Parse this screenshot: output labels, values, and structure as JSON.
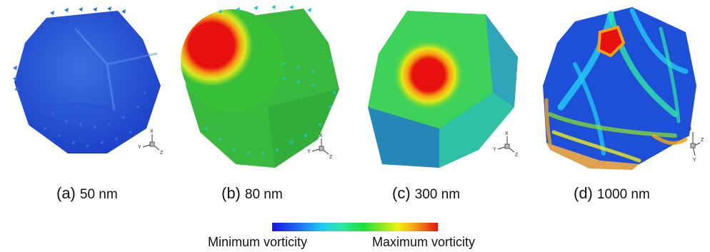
{
  "panels": [
    {
      "letter": "(a)",
      "size": "50 nm"
    },
    {
      "letter": "(b)",
      "size": "80 nm"
    },
    {
      "letter": "(c)",
      "size": "300 nm"
    },
    {
      "letter": "(d)",
      "size": "1000 nm"
    }
  ],
  "axes_labels": {
    "x": "X",
    "y": "Y",
    "z": "Z"
  },
  "colorbar": {
    "min_label": "Minimum vorticity",
    "max_label": "Maximum vorticity",
    "colors": [
      "#1a12e6",
      "#1d62f2",
      "#22c9f2",
      "#2ee8a5",
      "#18e03a",
      "#8ce81c",
      "#f3ee12",
      "#f5a214",
      "#e8100f"
    ]
  }
}
